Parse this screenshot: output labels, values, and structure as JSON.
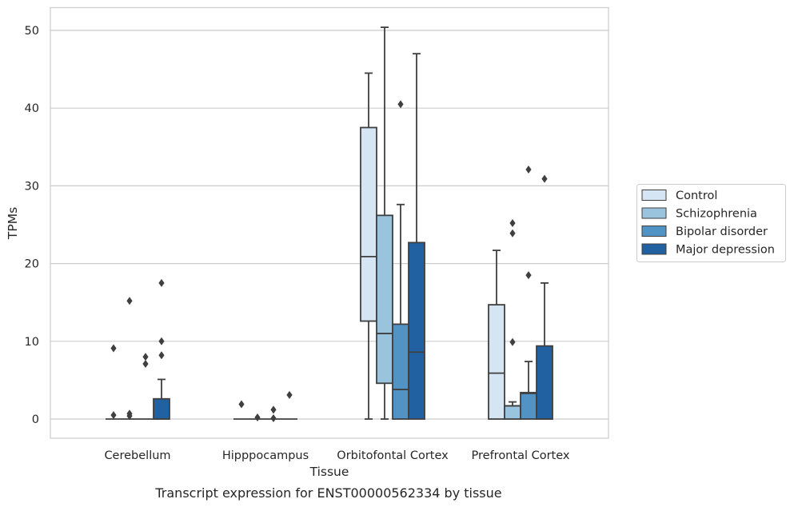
{
  "caption": "Transcript expression for ENST00000562334 by tissue",
  "chart_data": {
    "type": "box",
    "xlabel": "Tissue",
    "ylabel": "TPMs",
    "ylim": [
      -2.5,
      53
    ],
    "yticks": [
      0,
      10,
      20,
      30,
      40,
      50
    ],
    "grid": "horizontal",
    "legend_position": "right",
    "categories": [
      "Cerebellum",
      "Hipppocampus",
      "Orbitofontal Cortex",
      "Prefrontal Cortex"
    ],
    "series": [
      {
        "name": "Control",
        "color": "#d6e5f3",
        "boxes": [
          {
            "min": 0,
            "q1": 0,
            "median": 0,
            "q3": 0,
            "max": 0,
            "outliers": [
              0.5,
              9.1
            ]
          },
          {
            "min": 0,
            "q1": 0,
            "median": 0,
            "q3": 0,
            "max": 0,
            "outliers": [
              1.9
            ]
          },
          {
            "min": 0,
            "q1": 12.6,
            "median": 20.9,
            "q3": 37.5,
            "max": 44.5,
            "outliers": []
          },
          {
            "min": 0,
            "q1": 0,
            "median": 5.9,
            "q3": 14.7,
            "max": 21.7,
            "outliers": []
          }
        ]
      },
      {
        "name": "Schizophrenia",
        "color": "#9ac3dd",
        "boxes": [
          {
            "min": 0,
            "q1": 0,
            "median": 0,
            "q3": 0,
            "max": 0,
            "outliers": [
              0.4,
              0.7,
              15.2
            ]
          },
          {
            "min": 0,
            "q1": 0,
            "median": 0,
            "q3": 0,
            "max": 0,
            "outliers": [
              0.2
            ]
          },
          {
            "min": 0,
            "q1": 4.6,
            "median": 11.0,
            "q3": 26.2,
            "max": 50.4,
            "outliers": []
          },
          {
            "min": 0,
            "q1": 0,
            "median": 1.7,
            "q3": 1.7,
            "max": 2.2,
            "outliers": [
              9.9,
              23.9,
              25.2
            ]
          }
        ]
      },
      {
        "name": "Bipolar disorder",
        "color": "#5293c5",
        "boxes": [
          {
            "min": 0,
            "q1": 0,
            "median": 0,
            "q3": 0,
            "max": 0,
            "outliers": [
              7.1,
              8.0
            ]
          },
          {
            "min": 0,
            "q1": 0,
            "median": 0,
            "q3": 0,
            "max": 0,
            "outliers": [
              0.1,
              1.2
            ]
          },
          {
            "min": 0,
            "q1": 0,
            "median": 3.8,
            "q3": 12.2,
            "max": 27.6,
            "outliers": [
              40.5
            ]
          },
          {
            "min": 0,
            "q1": 0,
            "median": 3.3,
            "q3": 3.4,
            "max": 7.4,
            "outliers": [
              18.5,
              32.1
            ]
          }
        ]
      },
      {
        "name": "Major depression",
        "color": "#2161a2",
        "boxes": [
          {
            "min": 0,
            "q1": 0,
            "median": 0,
            "q3": 2.6,
            "max": 5.1,
            "outliers": [
              8.2,
              10.0,
              17.5
            ]
          },
          {
            "min": 0,
            "q1": 0,
            "median": 0,
            "q3": 0,
            "max": 0,
            "outliers": [
              3.1
            ]
          },
          {
            "min": 0,
            "q1": 0,
            "median": 8.6,
            "q3": 22.7,
            "max": 47.0,
            "outliers": []
          },
          {
            "min": 0,
            "q1": 0,
            "median": 0,
            "q3": 9.4,
            "max": 17.5,
            "outliers": [
              30.9
            ]
          }
        ]
      }
    ]
  }
}
